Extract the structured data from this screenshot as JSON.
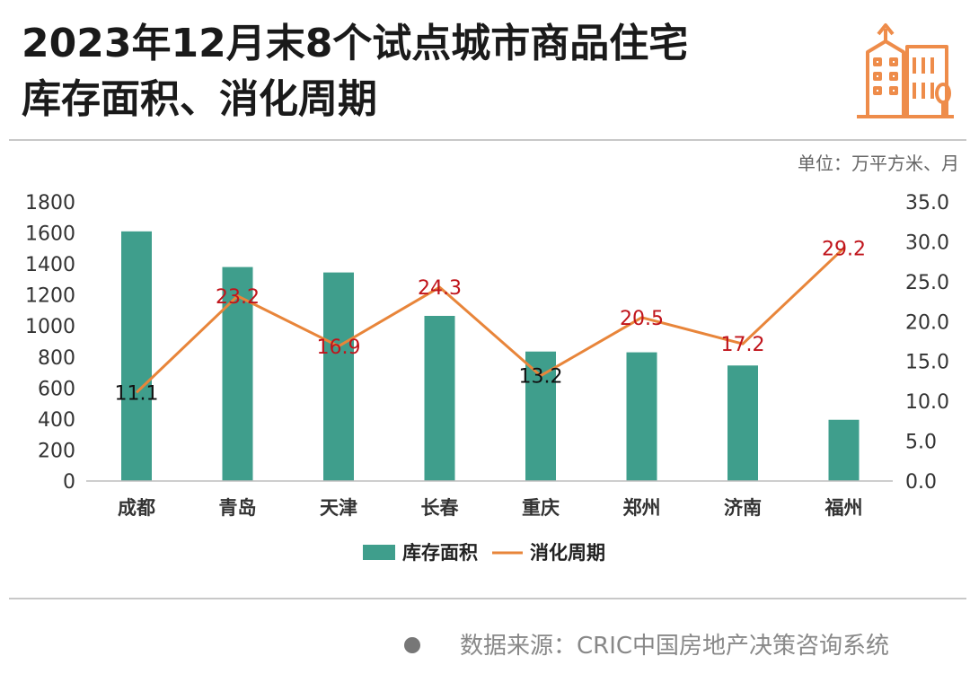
{
  "header": {
    "title_line1": "2023年12月末8个试点城市商品住宅",
    "title_line2": "库存面积、消化周期",
    "logo_icon": "building-icon",
    "unit": "单位：万平方米、月"
  },
  "footer": {
    "source": "数据来源：CRIC中国房地产决策咨询系统"
  },
  "chart_data": {
    "type": "bar",
    "categories": [
      "成都",
      "青岛",
      "天津",
      "长春",
      "重庆",
      "郑州",
      "济南",
      "福州"
    ],
    "series": [
      {
        "name": "库存面积",
        "type": "bar",
        "axis": "left",
        "color": "#3f9e8c",
        "values": [
          1610,
          1380,
          1345,
          1065,
          835,
          830,
          745,
          395
        ]
      },
      {
        "name": "消化周期",
        "type": "line",
        "axis": "right",
        "color": "#e8853a",
        "values": [
          11.1,
          23.2,
          16.9,
          24.3,
          13.2,
          20.5,
          17.2,
          29.2
        ],
        "labels": [
          "11.1",
          "23.2",
          "16.9",
          "24.3",
          "13.2",
          "20.5",
          "17.2",
          "29.2"
        ],
        "label_colors": [
          "#111111",
          "#c0141b",
          "#c0141b",
          "#c0141b",
          "#111111",
          "#c0141b",
          "#c0141b",
          "#c0141b"
        ]
      }
    ],
    "y_left": {
      "min": 0,
      "max": 1800,
      "ticks": [
        "0",
        "200",
        "400",
        "600",
        "800",
        "1000",
        "1200",
        "1400",
        "1600",
        "1800"
      ]
    },
    "y_right": {
      "min": 0,
      "max": 35,
      "ticks": [
        "0.0",
        "5.0",
        "10.0",
        "15.0",
        "20.0",
        "25.0",
        "30.0",
        "35.0"
      ]
    },
    "grid": false,
    "legend_position": "bottom"
  }
}
